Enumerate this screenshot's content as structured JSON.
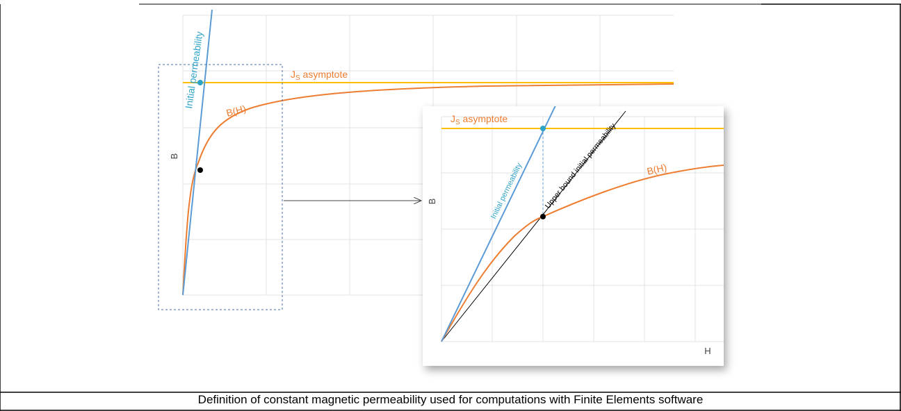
{
  "caption": "Definition of constant magnetic permeability used for computations with Finite Elements software",
  "colors": {
    "grid": "#e3e3e3",
    "initial_permeability": "#5b9bd5",
    "initial_permeability_label": "#2ea3c8",
    "bh_curve": "#ed7d31",
    "asymptote": "#ffc000",
    "asymptote_label": "#ed7d31",
    "upper_bound": "#000000",
    "point_black": "#000000",
    "point_cyan": "#2ea3c8"
  },
  "main_plot": {
    "y_label": "B",
    "initial_permeability_label": "Initial permeability",
    "curve_label": "B(H)",
    "asymptote_label_main": "J",
    "asymptote_label_sub": "S",
    "asymptote_label_rest": " asymptote"
  },
  "zoom_plot": {
    "y_label": "B",
    "x_label": "H",
    "initial_permeability_label": "Initial permeability",
    "upper_bound_label": "Upper bound initial permeability",
    "curve_label": "B(H)",
    "asymptote_label_main": "J",
    "asymptote_label_sub": "S",
    "asymptote_label_rest": " asymptote"
  }
}
